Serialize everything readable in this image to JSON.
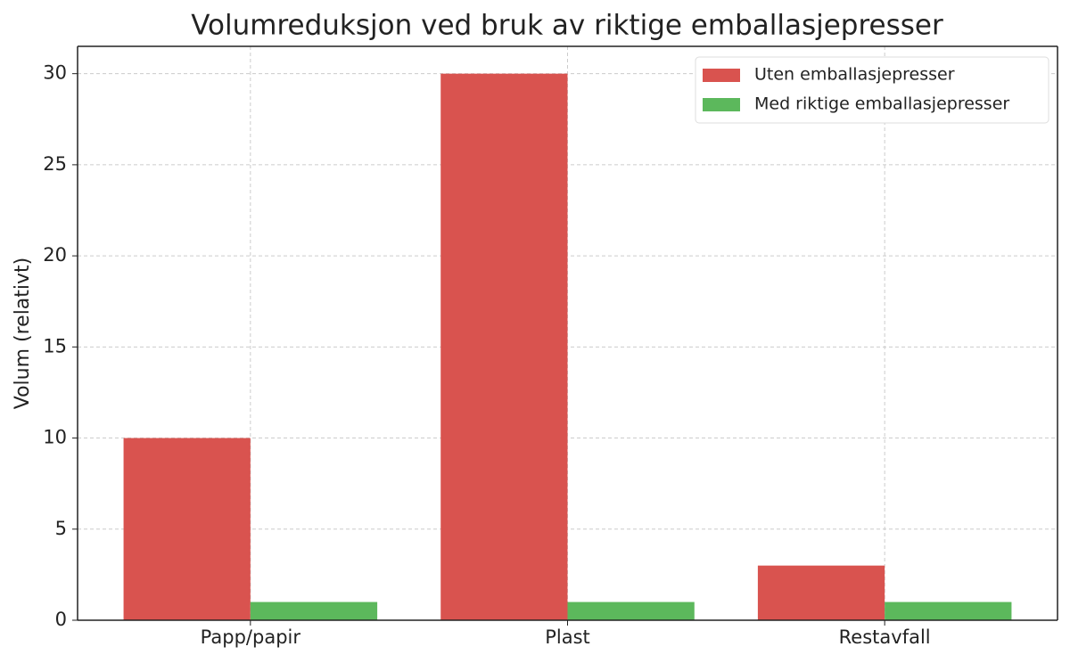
{
  "chart_data": {
    "type": "bar",
    "title": "Volumreduksjon ved bruk av riktige emballasjepresser",
    "ylabel": "Volum (relativt)",
    "categories": [
      "Papp/papir",
      "Plast",
      "Restavfall"
    ],
    "series": [
      {
        "name": "Uten emballasjepresser",
        "color": "#d9534f",
        "values": [
          10,
          30,
          3
        ]
      },
      {
        "name": "Med riktige emballasjepresser",
        "color": "#5cb85c",
        "values": [
          1,
          1,
          1
        ]
      }
    ],
    "ylim": [
      0,
      31.5
    ],
    "yticks": [
      0,
      5,
      10,
      15,
      20,
      25,
      30
    ],
    "grid": true,
    "legend": "upper right"
  }
}
